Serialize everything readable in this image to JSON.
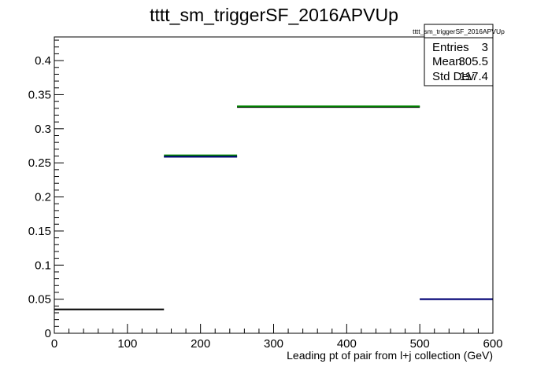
{
  "chart_data": {
    "type": "histogram",
    "title": "tttt_sm_triggerSF_2016APVUp",
    "xlabel": "Leading pt of pair from l+j collection (GeV)",
    "ylabel": "",
    "xlim": [
      0,
      600
    ],
    "ylim": [
      0,
      0.4347
    ],
    "x_ticks": [
      0,
      100,
      200,
      300,
      400,
      500,
      600
    ],
    "y_ticks": [
      0,
      0.05,
      0.1,
      0.15,
      0.2,
      0.25,
      0.3,
      0.35,
      0.4
    ],
    "y_tick_labels": [
      "0",
      "0.05",
      "0.1",
      "0.15",
      "0.2",
      "0.25",
      "0.3",
      "0.35",
      "0.4"
    ],
    "grid": false,
    "series": [
      {
        "color": "#000000",
        "bins": [
          {
            "x0": 0,
            "x1": 150,
            "y": 0.035
          },
          {
            "x0": 150,
            "x1": 250,
            "y": 0.259
          },
          {
            "x0": 250,
            "x1": 500,
            "y": 0.332
          },
          {
            "x0": 500,
            "x1": 600,
            "y": 0.05
          }
        ]
      },
      {
        "color": "#008000",
        "bins": [
          {
            "x0": 150,
            "x1": 250,
            "y": 0.261
          },
          {
            "x0": 250,
            "x1": 500,
            "y": 0.333
          }
        ]
      },
      {
        "color": "#00007f",
        "bins": [
          {
            "x0": 150,
            "x1": 250,
            "y": 0.259
          },
          {
            "x0": 500,
            "x1": 600,
            "y": 0.05
          }
        ]
      }
    ],
    "stats_box": {
      "title": "tttt_sm_triggerSF_2016APVUp",
      "rows": [
        {
          "label": "Entries",
          "value": "3"
        },
        {
          "label": "Mean",
          "value": "305.5"
        },
        {
          "label": "Std Dev",
          "value": "117.4"
        }
      ]
    }
  }
}
